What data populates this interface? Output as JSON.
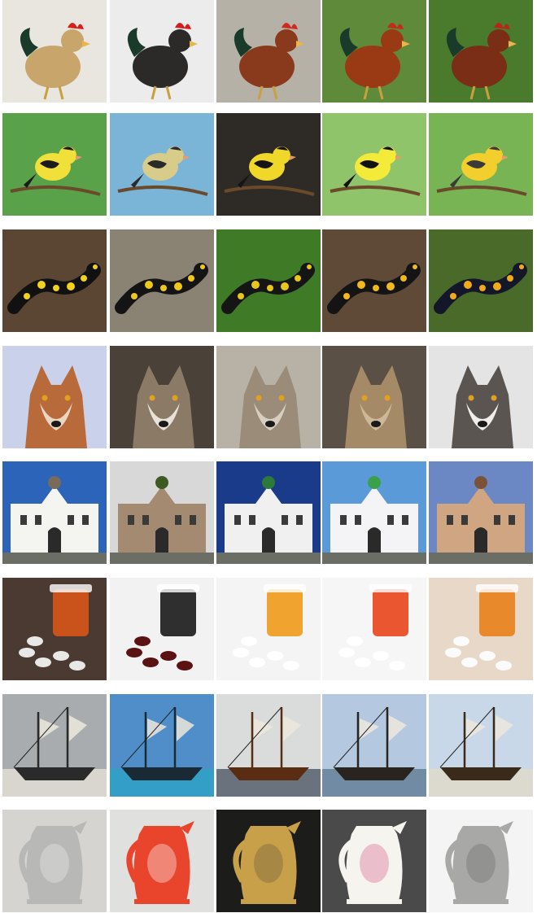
{
  "grid": {
    "rows": [
      {
        "subject": "rooster",
        "tiles": [
          {
            "subject": "rooster",
            "bg": "#e9e6df",
            "color": "#c8a56a",
            "accent": "#d8201a"
          },
          {
            "subject": "rooster",
            "bg": "#ececec",
            "color": "#2b2a28",
            "accent": "#d41e1a"
          },
          {
            "subject": "rooster",
            "bg": "#b6b1a6",
            "color": "#8a3a1c",
            "accent": "#cf2b20"
          },
          {
            "subject": "rooster",
            "bg": "#5e8a3a",
            "color": "#9a3a14",
            "accent": "#c42a1c"
          },
          {
            "subject": "hen",
            "bg": "#4a7a2c",
            "color": "#7a2e16",
            "accent": "#b8261a"
          }
        ]
      },
      {
        "subject": "goldfinch",
        "tiles": [
          {
            "subject": "goldfinch",
            "bg": "#5aa24a",
            "color": "#f1e03a",
            "accent": "#1c1c1c"
          },
          {
            "subject": "goldfinch",
            "bg": "#7ab4d6",
            "color": "#d8cc8a",
            "accent": "#2a2a2a"
          },
          {
            "subject": "goldfinch",
            "bg": "#2e2a26",
            "color": "#f0d82a",
            "accent": "#151515"
          },
          {
            "subject": "goldfinch",
            "bg": "#8fc46a",
            "color": "#f4ea3a",
            "accent": "#121212"
          },
          {
            "subject": "goldfinch",
            "bg": "#78b454",
            "color": "#f2cf2c",
            "accent": "#3a3a3a"
          }
        ]
      },
      {
        "subject": "fire-salamander",
        "tiles": [
          {
            "subject": "fire-salamander",
            "bg": "#5a4632",
            "color": "#111111",
            "accent": "#f2d21a"
          },
          {
            "subject": "fire-salamander",
            "bg": "#8a8272",
            "color": "#141414",
            "accent": "#f0c81c"
          },
          {
            "subject": "fire-salamander",
            "bg": "#3f7a26",
            "color": "#151515",
            "accent": "#e8c61e"
          },
          {
            "subject": "fire-salamander",
            "bg": "#5e4a36",
            "color": "#141414",
            "accent": "#f2b81c"
          },
          {
            "subject": "fire-salamander",
            "bg": "#4a6a2a",
            "color": "#14172a",
            "accent": "#f2aa1a"
          }
        ]
      },
      {
        "subject": "wolf",
        "tiles": [
          {
            "subject": "red-wolf",
            "bg": "#c9d2ea",
            "color": "#b86a3a",
            "accent": "#ead6c2"
          },
          {
            "subject": "gray-wolf",
            "bg": "#4a4238",
            "color": "#8a7a66",
            "accent": "#e8e2da"
          },
          {
            "subject": "wolf-pup",
            "bg": "#b8b2a6",
            "color": "#9a8c78",
            "accent": "#d8cfc0"
          },
          {
            "subject": "coyote",
            "bg": "#5a5046",
            "color": "#a48a66",
            "accent": "#cdb898"
          },
          {
            "subject": "gray-wolf",
            "bg": "#e4e4e4",
            "color": "#5a5550",
            "accent": "#f0eeea"
          }
        ]
      },
      {
        "subject": "building",
        "tiles": [
          {
            "subject": "white-building",
            "bg": "#2b64b8",
            "color": "#f4f4f0",
            "accent": "#7a6a5a"
          },
          {
            "subject": "stone-church",
            "bg": "#d8d8d8",
            "color": "#a48a70",
            "accent": "#3c5a22"
          },
          {
            "subject": "white-church",
            "bg": "#1a3a8a",
            "color": "#f0f0f0",
            "accent": "#2c7a3a"
          },
          {
            "subject": "monastery",
            "bg": "#5a9ad8",
            "color": "#f4f4f6",
            "accent": "#3aa04a"
          },
          {
            "subject": "town-hall",
            "bg": "#6c88c4",
            "color": "#d0a682",
            "accent": "#7a5238"
          }
        ]
      },
      {
        "subject": "pill-bottle",
        "tiles": [
          {
            "subject": "pill-bottle",
            "bg": "#4a3a32",
            "color": "#e8e8e6",
            "accent": "#d8561a"
          },
          {
            "subject": "pill-bottle",
            "bg": "#f2f2f2",
            "color": "#5a1212",
            "accent": "#1a1a1a"
          },
          {
            "subject": "pill-bottle",
            "bg": "#f4f4f4",
            "color": "#ffffff",
            "accent": "#f09a1a"
          },
          {
            "subject": "pill-bottle",
            "bg": "#f6f6f6",
            "color": "#ffffff",
            "accent": "#e8451a"
          },
          {
            "subject": "pill-bottle",
            "bg": "#e8d8c8",
            "color": "#fbfbfb",
            "accent": "#e8821a"
          }
        ]
      },
      {
        "subject": "schooner",
        "tiles": [
          {
            "subject": "schooner",
            "bg": "#a8acae",
            "color": "#2a2a2a",
            "accent": "#ece8dc"
          },
          {
            "subject": "schooner",
            "bg": "#4f8ec8",
            "color": "#1a2a34",
            "accent": "#2aa6c4"
          },
          {
            "subject": "schooner",
            "bg": "#dadcdc",
            "color": "#5a2c12",
            "accent": "#3a4654"
          },
          {
            "subject": "galleon",
            "bg": "#b4c8e0",
            "color": "#2a241e",
            "accent": "#56708a"
          },
          {
            "subject": "tall-ship",
            "bg": "#c8d8e8",
            "color": "#3a2a1a",
            "accent": "#e4dcc4"
          }
        ]
      },
      {
        "subject": "pitcher",
        "tiles": [
          {
            "subject": "pewter-pitcher",
            "bg": "#d6d4d0",
            "color": "#b8b8b6",
            "accent": "#efefed"
          },
          {
            "subject": "red-pitcher",
            "bg": "#e0e0de",
            "color": "#e8452c",
            "accent": "#ffffff"
          },
          {
            "subject": "ceramic-pitcher",
            "bg": "#1c1c1a",
            "color": "#c8a04a",
            "accent": "#6a5a3a"
          },
          {
            "subject": "white-pitcher",
            "bg": "#4a4a4a",
            "color": "#f6f4ee",
            "accent": "#d85a8a"
          },
          {
            "subject": "silver-pitcher",
            "bg": "#f4f4f4",
            "color": "#a8a8a6",
            "accent": "#6a6a68"
          }
        ]
      }
    ]
  }
}
